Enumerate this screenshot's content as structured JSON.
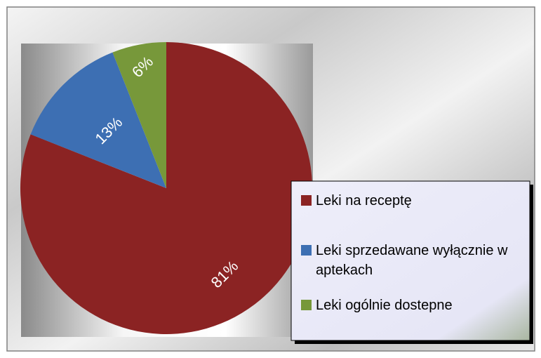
{
  "chart_data": {
    "type": "pie",
    "categories": [
      "Leki na receptę",
      "Leki sprzedawane wyłącznie w aptekach",
      "Leki ogólnie dostepne"
    ],
    "values": [
      81,
      13,
      6
    ],
    "value_labels": [
      "81%",
      "13%",
      "6%"
    ],
    "colors": [
      "#8b2323",
      "#3d6fb3",
      "#77983a"
    ]
  }
}
